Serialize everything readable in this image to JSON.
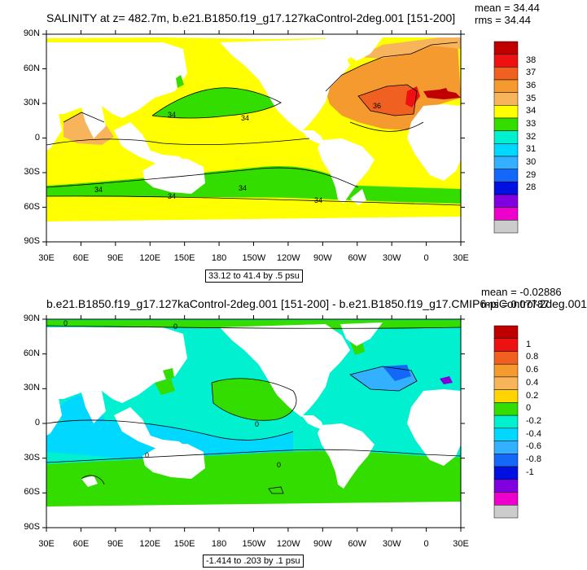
{
  "panels": [
    {
      "title": "SALINITY at z= 482.7m, b.e21.B1850.f19_g17.127kaControl-2deg.001 [151-200]",
      "mean": "mean = 34.44",
      "rms": "rms = 34.44",
      "subtitle": "33.12 to 41.4 by .5 psu",
      "colorbar_labels": [
        "38",
        "37",
        "36",
        "35",
        "34",
        "33",
        "32",
        "31",
        "30",
        "29",
        "28"
      ],
      "contour_labels": [
        "34",
        "34",
        "36",
        "34",
        "34",
        "34",
        "34"
      ]
    },
    {
      "title": "b.e21.B1850.f19_g17.127kaControl-2deg.001 [151-200] - b.e21.B1850.f19_g17.CMIP6-piControl-2deg.001",
      "mean": "mean = -0.02886",
      "rms": "rms = 0.07787",
      "subtitle": "-1.414 to .203 by .1 psu",
      "colorbar_labels": [
        "1",
        "0.8",
        "0.6",
        "0.4",
        "0.2",
        "0",
        "-0.2",
        "-0.4",
        "-0.6",
        "-0.8",
        "-1"
      ],
      "contour_labels": [
        "0",
        "0",
        "0",
        "0",
        "0"
      ]
    }
  ],
  "axes": {
    "lat_labels": [
      "90N",
      "60N",
      "30N",
      "0",
      "30S",
      "60S",
      "90S"
    ],
    "lon_labels": [
      "30E",
      "60E",
      "90E",
      "120E",
      "150E",
      "180",
      "150W",
      "120W",
      "90W",
      "60W",
      "30W",
      "0",
      "30E"
    ]
  },
  "colors": {
    "panel1_scale": [
      "#c00000",
      "#ee1111",
      "#f06020",
      "#f59a2e",
      "#f7b45a",
      "#ffff00",
      "#33dd00",
      "#00f0d0",
      "#00d8ff",
      "#33b0ff",
      "#1468f8",
      "#0010e0",
      "#8000e0",
      "#ee00cc",
      "#cccccc",
      "#777777"
    ],
    "panel2_scale": [
      "#c00000",
      "#ee1111",
      "#f06020",
      "#f59a2e",
      "#f7b45a",
      "#ffd400",
      "#33dd00",
      "#00f0d0",
      "#00d8ff",
      "#33b0ff",
      "#1468f8",
      "#0010e0",
      "#8000e0",
      "#ee00cc",
      "#cccccc",
      "#777777"
    ],
    "land": "#ffffff"
  }
}
